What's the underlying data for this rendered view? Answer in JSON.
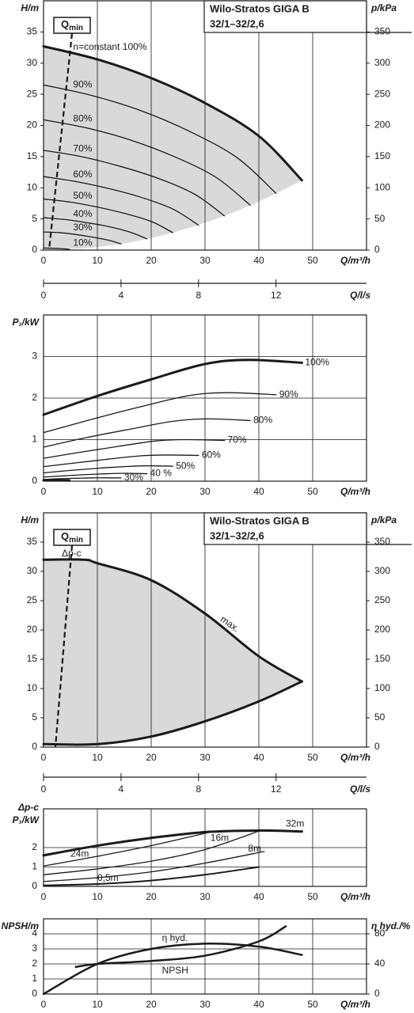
{
  "chart_data": [
    {
      "type": "line",
      "title": "Wilo-Stratos GIGA B",
      "subtitle": "32/1–32/2,6",
      "ylabel": "H/m",
      "y2label": "p/kPa",
      "xlabel": "Q/m³/h",
      "x2label": "Q/l/s",
      "qmin": {
        "text": "Q",
        "sub": "min"
      },
      "xlim": [
        0,
        60
      ],
      "xticks": [
        0,
        10,
        20,
        30,
        40,
        50
      ],
      "ylim": [
        0,
        40
      ],
      "yticks": [
        0,
        5,
        10,
        15,
        20,
        25,
        30,
        35
      ],
      "y2lim": [
        0,
        400
      ],
      "y2ticks": [
        0,
        50,
        100,
        150,
        200,
        250,
        300,
        350
      ],
      "x2lim": [
        0,
        16.67
      ],
      "x2ticks": [
        0,
        4,
        8,
        12
      ],
      "grid_x": true,
      "grid_y": false,
      "shade": {
        "color": "#d9d9d9",
        "between": [
          0,
          1
        ]
      },
      "series": [
        {
          "name": "n=constant 100%",
          "color": "#1a1a1a",
          "line_width": 3,
          "x": [
            0,
            10,
            20,
            30,
            40,
            48
          ],
          "values": [
            32.7,
            30.6,
            27.6,
            23.6,
            18.3,
            11.2
          ]
        },
        {
          "color": "#d9d9d9",
          "line_width": 0,
          "x": [
            0,
            10,
            20,
            30,
            40,
            48
          ],
          "values": [
            0,
            0.49,
            1.94,
            4.38,
            7.78,
            11.2
          ]
        },
        {
          "name": "90%",
          "color": "#1a1a1a",
          "line_width": 1.3,
          "x": [
            0,
            9,
            18,
            27,
            36,
            43.2
          ],
          "values": [
            26.5,
            24.8,
            22.4,
            19.1,
            14.8,
            9.1
          ]
        },
        {
          "name": "80%",
          "color": "#1a1a1a",
          "line_width": 1.3,
          "x": [
            0,
            8,
            16,
            24,
            32,
            38.4
          ],
          "values": [
            20.9,
            19.6,
            17.7,
            15.1,
            11.7,
            7.2
          ]
        },
        {
          "name": "70%",
          "color": "#1a1a1a",
          "line_width": 1.3,
          "x": [
            0,
            7,
            14,
            21,
            28,
            33.6
          ],
          "values": [
            16.0,
            15.0,
            13.5,
            11.6,
            9.0,
            5.5
          ]
        },
        {
          "name": "60%",
          "color": "#1a1a1a",
          "line_width": 1.3,
          "x": [
            0,
            6,
            12,
            18,
            24,
            28.8
          ],
          "values": [
            11.8,
            11.0,
            9.9,
            8.5,
            6.6,
            4.0
          ]
        },
        {
          "name": "50%",
          "color": "#1a1a1a",
          "line_width": 1.3,
          "x": [
            0,
            5,
            10,
            15,
            20,
            24
          ],
          "values": [
            8.2,
            7.7,
            6.9,
            5.9,
            4.6,
            2.8
          ]
        },
        {
          "name": "40%",
          "color": "#1a1a1a",
          "line_width": 1.3,
          "x": [
            0,
            4,
            8,
            12,
            16,
            19.2
          ],
          "values": [
            5.2,
            4.9,
            4.4,
            3.8,
            2.9,
            1.8
          ]
        },
        {
          "name": "30%",
          "color": "#1a1a1a",
          "line_width": 1.3,
          "x": [
            0,
            3,
            6,
            9,
            12,
            14.4
          ],
          "values": [
            2.9,
            2.8,
            2.5,
            2.1,
            1.6,
            1.0
          ]
        },
        {
          "name": "10%",
          "color": "#1a1a1a",
          "line_width": 1.3,
          "x": [
            0,
            1,
            2,
            3,
            4,
            4.8
          ],
          "values": [
            0.33,
            0.31,
            0.28,
            0.24,
            0.18,
            0.11
          ]
        }
      ]
    },
    {
      "type": "line",
      "ylabel": "P₁/kW",
      "xlabel": "Q/m³/h",
      "xlim": [
        0,
        60
      ],
      "xticks": [
        0,
        10,
        20,
        30,
        40,
        50
      ],
      "ylim": [
        0,
        4
      ],
      "yticks": [
        0,
        1,
        2,
        3
      ],
      "grid_x": true,
      "grid_y": true,
      "series": [
        {
          "name": "100%",
          "color": "#1a1a1a",
          "line_width": 3,
          "x": [
            0,
            10,
            20,
            30,
            38,
            48
          ],
          "values": [
            1.6,
            2.05,
            2.45,
            2.82,
            2.92,
            2.85
          ]
        },
        {
          "name": "90%",
          "color": "#1a1a1a",
          "line_width": 1.3,
          "x": [
            0,
            9,
            18,
            27,
            34.2,
            43.2
          ],
          "values": [
            1.17,
            1.49,
            1.79,
            2.06,
            2.13,
            2.08
          ]
        },
        {
          "name": "80%",
          "color": "#1a1a1a",
          "line_width": 1.3,
          "x": [
            0,
            8,
            16,
            24,
            30.4,
            38.4
          ],
          "values": [
            0.82,
            1.05,
            1.25,
            1.44,
            1.5,
            1.46
          ]
        },
        {
          "name": "70%",
          "color": "#1a1a1a",
          "line_width": 1.3,
          "x": [
            0,
            7,
            14,
            21,
            26.6,
            33.6
          ],
          "values": [
            0.55,
            0.7,
            0.84,
            0.97,
            1.0,
            0.98
          ]
        },
        {
          "name": "60%",
          "color": "#1a1a1a",
          "line_width": 1.3,
          "x": [
            0,
            6,
            12,
            18,
            22.8,
            28.8
          ],
          "values": [
            0.35,
            0.44,
            0.53,
            0.61,
            0.63,
            0.62
          ]
        },
        {
          "name": "50%",
          "color": "#1a1a1a",
          "line_width": 1.3,
          "x": [
            0,
            5,
            10,
            15,
            19,
            24
          ],
          "values": [
            0.2,
            0.26,
            0.31,
            0.35,
            0.37,
            0.36
          ]
        },
        {
          "name": "40 %",
          "color": "#1a1a1a",
          "line_width": 1.3,
          "x": [
            0,
            4,
            8,
            12,
            15.2,
            19.2
          ],
          "values": [
            0.1,
            0.13,
            0.16,
            0.18,
            0.19,
            0.18
          ]
        },
        {
          "name": "30%",
          "color": "#1a1a1a",
          "line_width": 1.3,
          "x": [
            0,
            3,
            6,
            9,
            11.4,
            14.4
          ],
          "values": [
            0.04,
            0.06,
            0.07,
            0.08,
            0.08,
            0.08
          ]
        },
        {
          "color": "#1a1a1a",
          "line_width": 3,
          "x": [
            0,
            1,
            2,
            3,
            3.8,
            4.8
          ],
          "values": [
            0.02,
            0.02,
            0.02,
            0.02,
            0.02,
            0.02
          ]
        }
      ]
    },
    {
      "type": "line",
      "title": "Wilo-Stratos GIGA B",
      "subtitle": "32/1–32/2,6",
      "ylabel": "H/m",
      "y2label": "p/kPa",
      "xlabel": "Q/m³/h",
      "x2label": "Q/l/s",
      "qmin": {
        "text": "Q",
        "sub": "min"
      },
      "annotation": "Δp-c",
      "xlim": [
        0,
        60
      ],
      "xticks": [
        0,
        10,
        20,
        30,
        40,
        50
      ],
      "ylim": [
        0,
        40
      ],
      "yticks": [
        0,
        5,
        10,
        15,
        20,
        25,
        30,
        35
      ],
      "y2lim": [
        0,
        400
      ],
      "y2ticks": [
        0,
        50,
        100,
        150,
        200,
        250,
        300,
        350
      ],
      "x2lim": [
        0,
        16.67
      ],
      "x2ticks": [
        0,
        4,
        8,
        12
      ],
      "grid_x": true,
      "grid_y": false,
      "shade": {
        "color": "#d9d9d9",
        "between": [
          0,
          1
        ]
      },
      "series": [
        {
          "name": "max.",
          "color": "#1a1a1a",
          "line_width": 3,
          "x": [
            0,
            7.5,
            10,
            20,
            30,
            40,
            48
          ],
          "values": [
            32,
            32,
            31.4,
            28.5,
            22.8,
            15.5,
            11.2
          ]
        },
        {
          "color": "#1a1a1a",
          "line_width": 3,
          "x": [
            0,
            10,
            20,
            30,
            40,
            48
          ],
          "values": [
            0.5,
            0.5,
            1.8,
            4.4,
            7.8,
            11.2
          ]
        }
      ]
    },
    {
      "type": "line",
      "ylabel_top": "Δp-c",
      "ylabel": "P₁/kW",
      "xlabel": "Q/m³/h",
      "xlim": [
        0,
        60
      ],
      "xticks": [
        0,
        10,
        20,
        30,
        40,
        50
      ],
      "ylim": [
        0,
        4
      ],
      "yticks": [
        0,
        1,
        2
      ],
      "grid_x": true,
      "grid_y": true,
      "series": [
        {
          "name": "32m",
          "color": "#1a1a1a",
          "line_width": 3,
          "x": [
            0,
            10,
            20,
            30,
            40,
            48
          ],
          "values": [
            1.6,
            2.1,
            2.5,
            2.8,
            2.88,
            2.83
          ]
        },
        {
          "name": "24m",
          "color": "#1a1a1a",
          "line_width": 1.3,
          "x": [
            0,
            10,
            20,
            31
          ],
          "values": [
            1.05,
            1.55,
            2.1,
            2.8
          ]
        },
        {
          "name": "16m",
          "color": "#1a1a1a",
          "line_width": 1.3,
          "x": [
            0,
            10,
            20,
            30,
            40
          ],
          "values": [
            0.6,
            0.9,
            1.3,
            1.9,
            2.85
          ]
        },
        {
          "name": "8m",
          "color": "#1a1a1a",
          "line_width": 1.3,
          "x": [
            0,
            10,
            20,
            30,
            41
          ],
          "values": [
            0.25,
            0.45,
            0.75,
            1.2,
            1.8
          ]
        },
        {
          "name": "0,5m",
          "color": "#1a1a1a",
          "line_width": 2,
          "x": [
            0,
            10,
            20,
            30,
            40
          ],
          "values": [
            0.05,
            0.12,
            0.3,
            0.6,
            1.0
          ]
        }
      ]
    },
    {
      "type": "line",
      "ylabel": "NPSH/m",
      "y2label": "η hyd./%",
      "xlabel": "Q/m³/h",
      "xlim": [
        0,
        60
      ],
      "xticks": [
        0,
        10,
        20,
        30,
        40,
        50
      ],
      "ylim": [
        0,
        5
      ],
      "yticks": [
        0,
        1,
        2,
        3,
        4
      ],
      "y2lim": [
        0,
        100
      ],
      "y2ticks": [
        0,
        40,
        80
      ],
      "grid_x": true,
      "grid_y": true,
      "series": [
        {
          "name": "η hyd.",
          "axis": "y2",
          "color": "#1a1a1a",
          "line_width": 2.5,
          "x": [
            0,
            10,
            20,
            30,
            40,
            48
          ],
          "values": [
            0,
            40,
            60,
            67,
            63,
            52
          ]
        },
        {
          "name": "NPSH",
          "color": "#1a1a1a",
          "line_width": 2.5,
          "x": [
            6,
            10,
            20,
            30,
            40,
            45
          ],
          "values": [
            1.8,
            2.0,
            2.2,
            2.55,
            3.5,
            4.5
          ]
        }
      ]
    }
  ]
}
